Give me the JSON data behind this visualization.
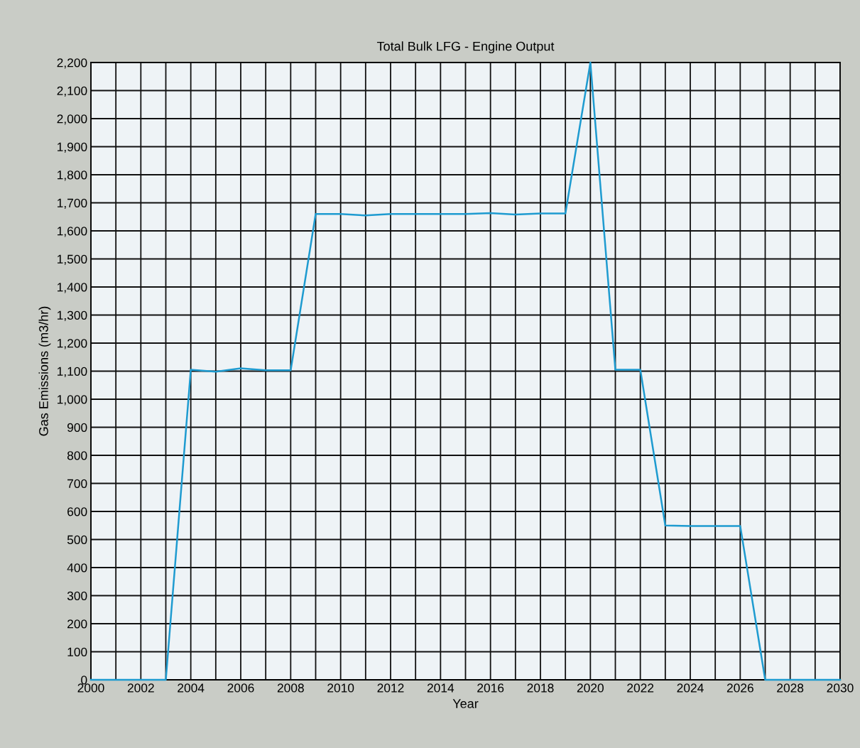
{
  "chart_data": {
    "type": "line",
    "title": "Total Bulk LFG - Engine Output",
    "xlabel": "Year",
    "ylabel": "Gas Emissions (m3/hr)",
    "x": [
      2000,
      2001,
      2002,
      2003,
      2004,
      2005,
      2006,
      2007,
      2008,
      2009,
      2010,
      2011,
      2012,
      2013,
      2014,
      2015,
      2016,
      2017,
      2018,
      2019,
      2020,
      2021,
      2022,
      2023,
      2024,
      2025,
      2026,
      2027,
      2028,
      2029,
      2030
    ],
    "series": [
      {
        "color": "#1e9bd0",
        "values": [
          0,
          0,
          0,
          0,
          1105,
          1098,
          1110,
          1103,
          1103,
          1660,
          1660,
          1655,
          1660,
          1660,
          1660,
          1660,
          1663,
          1658,
          1662,
          1662,
          2200,
          1105,
          1105,
          550,
          548,
          548,
          548,
          0,
          0,
          0,
          0
        ]
      }
    ],
    "xlim": [
      2000,
      2030
    ],
    "xticks": [
      2000,
      {
        "value": 2001,
        "label": null
      },
      2002,
      {
        "value": 2003,
        "label": null
      },
      2004,
      {
        "value": 2005,
        "label": null
      },
      2006,
      {
        "value": 2007,
        "label": null
      },
      2008,
      {
        "value": 2009,
        "label": null
      },
      2010,
      {
        "value": 2011,
        "label": null
      },
      2012,
      {
        "value": 2013,
        "label": null
      },
      2014,
      {
        "value": 2015,
        "label": null
      },
      2016,
      {
        "value": 2017,
        "label": null
      },
      2018,
      {
        "value": 2019,
        "label": null
      },
      2020,
      {
        "value": 2021,
        "label": null
      },
      2022,
      {
        "value": 2023,
        "label": null
      },
      2024,
      {
        "value": 2025,
        "label": null
      },
      2026,
      {
        "value": 2027,
        "label": null
      },
      2028,
      {
        "value": 2029,
        "label": null
      },
      2030
    ],
    "ylim": [
      0,
      2200
    ],
    "yticks": [
      0,
      100,
      200,
      300,
      400,
      500,
      600,
      700,
      800,
      900,
      {
        "value": 1000,
        "label": "1,000"
      },
      {
        "value": 1100,
        "label": "1,100"
      },
      {
        "value": 1200,
        "label": "1,200"
      },
      {
        "value": 1300,
        "label": "1,300"
      },
      {
        "value": 1400,
        "label": "1,400"
      },
      {
        "value": 1500,
        "label": "1,500"
      },
      {
        "value": 1600,
        "label": "1,600"
      },
      {
        "value": 1700,
        "label": "1,700"
      },
      {
        "value": 1800,
        "label": "1,800"
      },
      {
        "value": 1900,
        "label": "1,900"
      },
      {
        "value": 2000,
        "label": "2,000"
      },
      {
        "value": 2100,
        "label": "2,100"
      },
      {
        "value": 2200,
        "label": "2,200"
      }
    ],
    "grid": true,
    "marker": "none",
    "line_style": "solid",
    "legend": false
  }
}
